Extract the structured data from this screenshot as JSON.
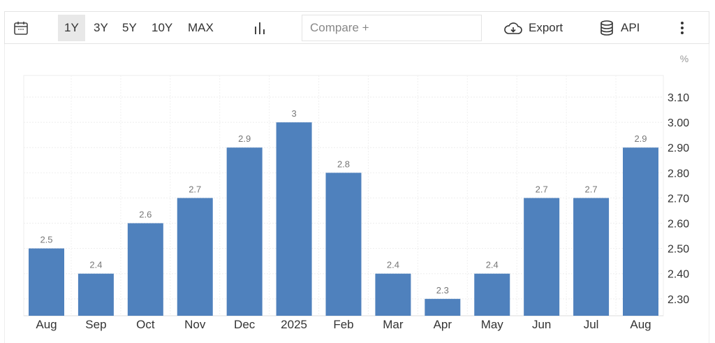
{
  "toolbar": {
    "calendar_icon": "calendar-icon",
    "ranges": [
      "1Y",
      "3Y",
      "5Y",
      "10Y",
      "MAX"
    ],
    "active_range": "1Y",
    "chart_type_icon": "bar-chart-icon",
    "compare_placeholder": "Compare +",
    "export_label": "Export",
    "export_icon": "cloud-download-icon",
    "api_label": "API",
    "api_icon": "database-icon",
    "more_icon": "vertical-ellipsis-icon"
  },
  "chart_data": {
    "type": "bar",
    "unit": "%",
    "categories": [
      "Aug",
      "Sep",
      "Oct",
      "Nov",
      "Dec",
      "2025",
      "Feb",
      "Mar",
      "Apr",
      "May",
      "Jun",
      "Jul",
      "Aug"
    ],
    "values": [
      2.5,
      2.4,
      2.6,
      2.7,
      2.9,
      3,
      2.8,
      2.4,
      2.3,
      2.4,
      2.7,
      2.7,
      2.9
    ],
    "data_labels": [
      "2.5",
      "2.4",
      "2.6",
      "2.7",
      "2.9",
      "3",
      "2.8",
      "2.4",
      "2.3",
      "2.4",
      "2.7",
      "2.7",
      "2.9"
    ],
    "yticks": [
      "2.30",
      "2.40",
      "2.50",
      "2.60",
      "2.70",
      "2.80",
      "2.90",
      "3.00",
      "3.10"
    ],
    "ylim": [
      2.233,
      3.186
    ],
    "y_axis_position": "right",
    "grid": true,
    "bar_color": "#4f81bd"
  }
}
